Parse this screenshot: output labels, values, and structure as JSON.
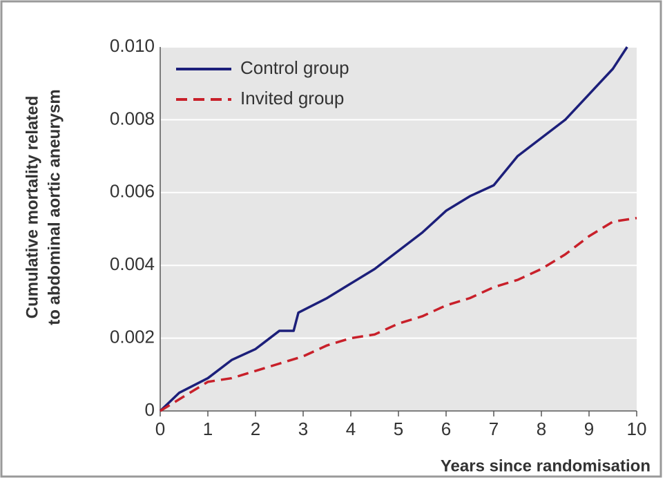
{
  "chart_data": {
    "type": "line",
    "ylabel": [
      "Cumulative mortality related",
      "to abdominal aortic aneurysm"
    ],
    "xlabel": "Years since randomisation",
    "xlim": [
      0,
      10
    ],
    "xticks": [
      0,
      1,
      2,
      3,
      4,
      5,
      6,
      7,
      8,
      9,
      10
    ],
    "ylim": [
      0,
      0.01
    ],
    "yticks": [
      0,
      0.002,
      0.004,
      0.006,
      0.008,
      {
        "value": 0.01,
        "label": "0.010"
      }
    ],
    "grid": true,
    "legend": "upper left",
    "series": [
      {
        "name": "Control group",
        "color": "#1c1f7a",
        "style": "solid",
        "x": [
          0,
          0.4,
          1,
          1.5,
          2,
          2.5,
          2.8,
          2.9,
          3.5,
          4,
          4.5,
          5,
          5.5,
          6,
          6.5,
          7,
          7.5,
          8,
          8.5,
          9,
          9.5,
          9.8
        ],
        "values": [
          0,
          0.0005,
          0.0009,
          0.0014,
          0.0017,
          0.0022,
          0.0022,
          0.0027,
          0.0031,
          0.0035,
          0.0039,
          0.0044,
          0.0049,
          0.0055,
          0.0059,
          0.0062,
          0.007,
          0.0075,
          0.008,
          0.0087,
          0.0094,
          0.01
        ]
      },
      {
        "name": "Invited group",
        "color": "#c8202a",
        "style": "dashed",
        "x": [
          0,
          0.5,
          1,
          1.5,
          2,
          2.5,
          3,
          3.5,
          4,
          4.5,
          5,
          5.5,
          6,
          6.5,
          7,
          7.5,
          8,
          8.5,
          9,
          9.5,
          10
        ],
        "values": [
          0,
          0.0004,
          0.0008,
          0.0009,
          0.0011,
          0.0013,
          0.0015,
          0.0018,
          0.002,
          0.0021,
          0.0024,
          0.0026,
          0.0029,
          0.0031,
          0.0034,
          0.0036,
          0.0039,
          0.0043,
          0.0048,
          0.0052,
          0.0053
        ]
      }
    ]
  }
}
